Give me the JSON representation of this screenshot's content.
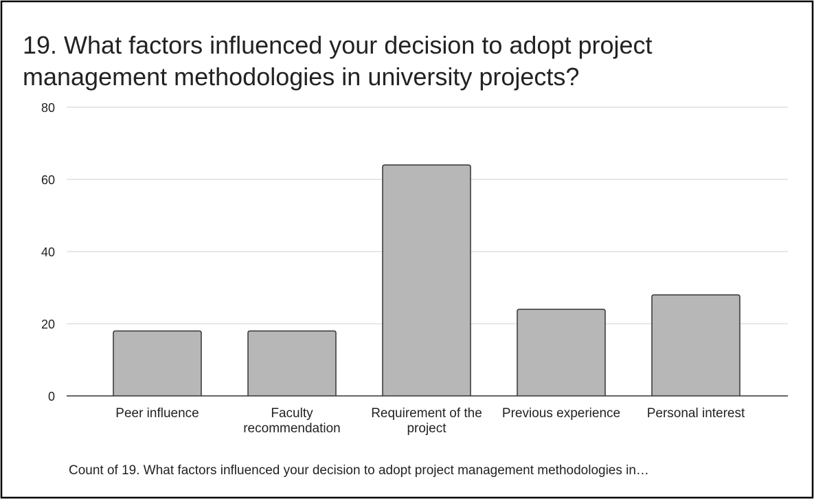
{
  "chart_data": {
    "type": "bar",
    "title": "19. What factors influenced your decision to adopt project management methodologies in university projects?",
    "categories": [
      "Peer influence",
      "Faculty recommendation",
      "Requirement of the project",
      "Previous experience",
      "Personal interest"
    ],
    "values": [
      18,
      18,
      64,
      24,
      28
    ],
    "color": "#b7b7b7",
    "ylim": [
      0,
      80
    ],
    "yticks": [
      0,
      20,
      40,
      60,
      80
    ],
    "grid": true,
    "x_label": "Count of 19. What factors influenced your decision to adopt project management methodologies in…"
  }
}
